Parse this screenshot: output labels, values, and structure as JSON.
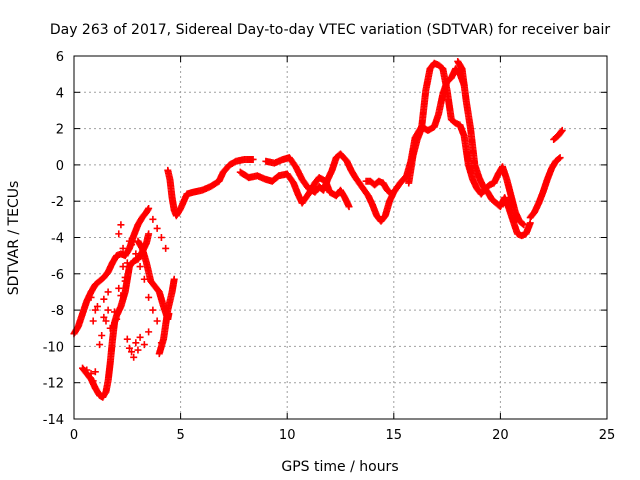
{
  "chart_data": {
    "type": "scatter",
    "title": "Day 263 of 2017, Sidereal Day-to-day VTEC variation (SDTVAR) for receiver bair",
    "xlabel": "GPS time / hours",
    "ylabel": "SDTVAR / TECUs",
    "xlim": [
      0,
      25
    ],
    "ylim": [
      -14,
      6
    ],
    "xticks": [
      0,
      5,
      10,
      15,
      20,
      25
    ],
    "yticks": [
      -14,
      -12,
      -10,
      -8,
      -6,
      -4,
      -2,
      0,
      2,
      4,
      6
    ],
    "grid": true,
    "marker": "+",
    "color": "#ff0000",
    "series": [
      {
        "segments": [
          [
            [
              0.0,
              -9.3
            ],
            [
              0.2,
              -8.9
            ],
            [
              0.4,
              -8.2
            ],
            [
              0.6,
              -7.5
            ],
            [
              0.8,
              -7.0
            ],
            [
              1.0,
              -6.6
            ],
            [
              1.2,
              -6.4
            ],
            [
              1.4,
              -6.2
            ],
            [
              1.6,
              -5.9
            ],
            [
              1.8,
              -5.4
            ],
            [
              2.0,
              -5.0
            ],
            [
              2.2,
              -4.9
            ],
            [
              2.4,
              -5.0
            ],
            [
              2.6,
              -4.6
            ],
            [
              2.8,
              -3.9
            ],
            [
              3.0,
              -3.3
            ],
            [
              3.2,
              -2.9
            ],
            [
              3.4,
              -2.6
            ],
            [
              3.5,
              -2.4
            ]
          ],
          [
            [
              0.4,
              -11.2
            ],
            [
              0.6,
              -11.5
            ],
            [
              0.8,
              -11.8
            ],
            [
              1.0,
              -12.3
            ],
            [
              1.2,
              -12.7
            ],
            [
              1.35,
              -12.8
            ],
            [
              1.5,
              -12.5
            ],
            [
              1.6,
              -11.9
            ],
            [
              1.7,
              -10.9
            ],
            [
              1.8,
              -9.7
            ],
            [
              1.9,
              -8.7
            ],
            [
              2.0,
              -8.3
            ],
            [
              2.2,
              -7.8
            ],
            [
              2.4,
              -7.0
            ],
            [
              2.5,
              -6.3
            ],
            [
              2.6,
              -5.6
            ],
            [
              2.8,
              -5.3
            ],
            [
              3.0,
              -5.2
            ],
            [
              3.2,
              -4.8
            ],
            [
              3.4,
              -4.3
            ],
            [
              3.5,
              -3.8
            ]
          ],
          [
            [
              3.0,
              -4.2
            ],
            [
              3.2,
              -4.6
            ],
            [
              3.4,
              -5.4
            ],
            [
              3.6,
              -6.4
            ],
            [
              3.8,
              -6.7
            ],
            [
              4.0,
              -7.0
            ],
            [
              4.2,
              -7.8
            ],
            [
              4.4,
              -8.5
            ],
            [
              4.45,
              -8.2
            ]
          ],
          [
            [
              4.0,
              -10.4
            ],
            [
              4.2,
              -9.6
            ],
            [
              4.4,
              -8.0
            ],
            [
              4.6,
              -7.0
            ],
            [
              4.7,
              -6.3
            ]
          ],
          [
            [
              4.4,
              -0.3
            ],
            [
              4.5,
              -0.8
            ],
            [
              4.6,
              -1.8
            ],
            [
              4.7,
              -2.5
            ],
            [
              4.8,
              -2.8
            ],
            [
              5.0,
              -2.4
            ],
            [
              5.3,
              -1.6
            ],
            [
              5.6,
              -1.5
            ],
            [
              6.0,
              -1.4
            ],
            [
              6.4,
              -1.2
            ],
            [
              6.8,
              -0.9
            ],
            [
              7.0,
              -0.4
            ],
            [
              7.3,
              0.0
            ],
            [
              7.6,
              0.2
            ],
            [
              8.0,
              0.3
            ],
            [
              8.4,
              0.3
            ]
          ],
          [
            [
              7.8,
              -0.4
            ],
            [
              8.2,
              -0.7
            ],
            [
              8.6,
              -0.6
            ],
            [
              9.0,
              -0.8
            ],
            [
              9.3,
              -0.9
            ],
            [
              9.6,
              -0.6
            ],
            [
              10.0,
              -0.5
            ],
            [
              10.3,
              -1.0
            ],
            [
              10.5,
              -1.6
            ],
            [
              10.7,
              -2.1
            ],
            [
              11.0,
              -1.6
            ],
            [
              11.3,
              -1.0
            ],
            [
              11.5,
              -0.7
            ],
            [
              11.8,
              -0.9
            ],
            [
              12.0,
              -1.5
            ],
            [
              12.3,
              -1.7
            ],
            [
              12.5,
              -1.4
            ],
            [
              12.7,
              -1.8
            ],
            [
              12.9,
              -2.3
            ]
          ],
          [
            [
              9.0,
              0.2
            ],
            [
              9.4,
              0.1
            ],
            [
              9.8,
              0.3
            ],
            [
              10.1,
              0.4
            ],
            [
              10.4,
              -0.1
            ],
            [
              10.7,
              -0.8
            ],
            [
              11.0,
              -1.3
            ],
            [
              11.3,
              -1.5
            ],
            [
              11.5,
              -1.2
            ],
            [
              11.7,
              -1.4
            ],
            [
              11.9,
              -0.8
            ],
            [
              12.1,
              -0.3
            ],
            [
              12.3,
              0.4
            ],
            [
              12.5,
              0.6
            ],
            [
              12.8,
              0.2
            ],
            [
              13.0,
              -0.3
            ],
            [
              13.2,
              -0.7
            ],
            [
              13.5,
              -1.2
            ],
            [
              13.8,
              -1.7
            ],
            [
              14.0,
              -2.2
            ],
            [
              14.2,
              -2.8
            ],
            [
              14.4,
              -3.1
            ],
            [
              14.6,
              -2.8
            ],
            [
              14.8,
              -2.0
            ],
            [
              15.0,
              -1.5
            ],
            [
              15.3,
              -1.0
            ],
            [
              15.6,
              -0.6
            ],
            [
              15.8,
              0.2
            ],
            [
              16.0,
              1.5
            ],
            [
              16.3,
              2.1
            ],
            [
              16.6,
              1.9
            ],
            [
              16.9,
              2.1
            ],
            [
              17.1,
              2.8
            ],
            [
              17.3,
              3.9
            ],
            [
              17.5,
              4.6
            ],
            [
              17.7,
              4.8
            ],
            [
              17.9,
              5.3
            ],
            [
              18.1,
              5.0
            ],
            [
              18.3,
              4.4
            ]
          ],
          [
            [
              13.7,
              -0.9
            ],
            [
              13.9,
              -0.9
            ],
            [
              14.1,
              -1.1
            ],
            [
              14.3,
              -0.9
            ],
            [
              14.5,
              -1.0
            ],
            [
              14.7,
              -1.4
            ],
            [
              14.9,
              -1.6
            ]
          ],
          [
            [
              15.7,
              -1.0
            ],
            [
              15.9,
              0.5
            ],
            [
              16.1,
              1.4
            ],
            [
              16.3,
              2.0
            ],
            [
              16.5,
              4.1
            ],
            [
              16.7,
              5.3
            ],
            [
              16.9,
              5.6
            ],
            [
              17.1,
              5.5
            ],
            [
              17.3,
              5.3
            ],
            [
              17.5,
              4.1
            ],
            [
              17.7,
              2.5
            ],
            [
              17.9,
              2.3
            ],
            [
              18.1,
              2.2
            ],
            [
              18.3,
              1.6
            ],
            [
              18.5,
              0.0
            ],
            [
              18.7,
              -0.8
            ],
            [
              18.9,
              -1.3
            ],
            [
              19.1,
              -1.6
            ],
            [
              19.3,
              -1.3
            ],
            [
              19.5,
              -1.1
            ],
            [
              19.7,
              -1.0
            ],
            [
              19.9,
              -0.5
            ],
            [
              20.1,
              -0.1
            ],
            [
              20.3,
              -0.8
            ],
            [
              20.5,
              -1.7
            ],
            [
              20.7,
              -2.6
            ],
            [
              20.9,
              -3.1
            ],
            [
              21.1,
              -3.3
            ]
          ],
          [
            [
              18.0,
              5.7
            ],
            [
              18.2,
              5.3
            ],
            [
              18.4,
              3.5
            ],
            [
              18.6,
              2.0
            ],
            [
              18.8,
              0.0
            ],
            [
              19.0,
              -0.7
            ],
            [
              19.2,
              -1.2
            ],
            [
              19.4,
              -1.5
            ],
            [
              19.6,
              -1.9
            ],
            [
              19.8,
              -2.1
            ],
            [
              20.0,
              -2.3
            ],
            [
              20.2,
              -1.8
            ],
            [
              20.4,
              -2.4
            ],
            [
              20.6,
              -3.1
            ],
            [
              20.8,
              -3.8
            ],
            [
              21.0,
              -3.9
            ],
            [
              21.2,
              -3.8
            ],
            [
              21.4,
              -3.2
            ]
          ],
          [
            [
              21.4,
              -2.9
            ],
            [
              21.6,
              -2.6
            ],
            [
              21.8,
              -2.1
            ],
            [
              22.0,
              -1.5
            ],
            [
              22.2,
              -0.8
            ],
            [
              22.4,
              -0.2
            ],
            [
              22.6,
              0.2
            ],
            [
              22.8,
              0.4
            ]
          ],
          [
            [
              22.5,
              1.4
            ],
            [
              22.7,
              1.6
            ],
            [
              22.9,
              1.9
            ]
          ]
        ],
        "scattered": [
          [
            0.6,
            -11.3
          ],
          [
            0.8,
            -11.5
          ],
          [
            1.0,
            -11.4
          ],
          [
            0.9,
            -11.9
          ],
          [
            1.2,
            -9.9
          ],
          [
            1.3,
            -9.4
          ],
          [
            1.4,
            -8.4
          ],
          [
            1.5,
            -8.6
          ],
          [
            1.6,
            -8.0
          ],
          [
            1.4,
            -7.4
          ],
          [
            1.6,
            -7.0
          ],
          [
            1.7,
            -9.0
          ],
          [
            1.9,
            -8.1
          ],
          [
            2.1,
            -6.8
          ],
          [
            2.2,
            -7.2
          ],
          [
            2.0,
            -8.5
          ],
          [
            2.4,
            -6.4
          ],
          [
            2.5,
            -5.4
          ],
          [
            2.3,
            -4.6
          ],
          [
            2.6,
            -4.2
          ],
          [
            2.1,
            -3.8
          ],
          [
            2.2,
            -3.3
          ],
          [
            2.7,
            -4.4
          ],
          [
            2.9,
            -4.9
          ],
          [
            3.1,
            -5.6
          ],
          [
            3.3,
            -6.3
          ],
          [
            3.5,
            -7.3
          ],
          [
            3.7,
            -8.0
          ],
          [
            3.9,
            -8.6
          ],
          [
            4.1,
            -9.8
          ],
          [
            2.5,
            -9.6
          ],
          [
            2.6,
            -10.1
          ],
          [
            2.7,
            -10.3
          ],
          [
            2.8,
            -10.6
          ],
          [
            2.9,
            -9.8
          ],
          [
            3.0,
            -10.2
          ],
          [
            3.1,
            -9.5
          ],
          [
            3.3,
            -9.9
          ],
          [
            3.5,
            -9.2
          ],
          [
            1.0,
            -8.0
          ],
          [
            0.9,
            -8.6
          ],
          [
            0.8,
            -7.3
          ],
          [
            1.1,
            -7.8
          ],
          [
            2.3,
            -5.6
          ],
          [
            2.4,
            -6.2
          ],
          [
            3.7,
            -3.0
          ],
          [
            3.9,
            -3.5
          ],
          [
            4.1,
            -4.0
          ],
          [
            4.3,
            -4.6
          ]
        ]
      }
    ]
  }
}
